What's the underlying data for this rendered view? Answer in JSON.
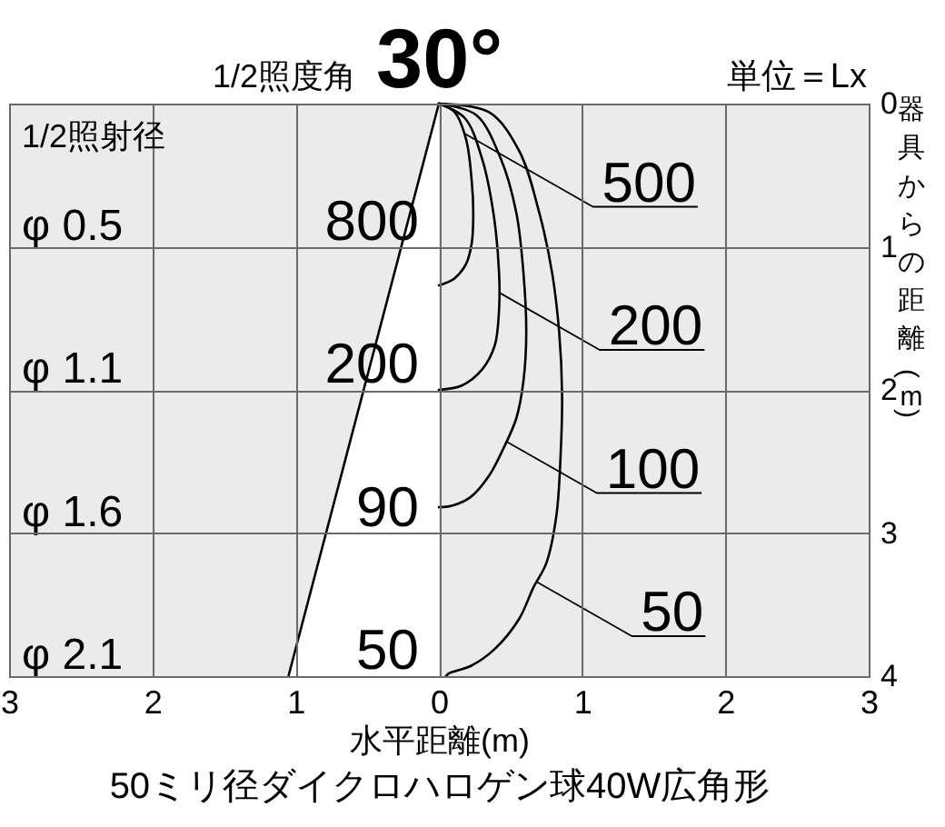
{
  "chart_data": {
    "type": "line",
    "title": "30°",
    "subtitle": "1/2照度角",
    "xlabel": "水平距離(m)",
    "ylabel": "器具からの距離(m)",
    "annotations": [
      "1/2照射径",
      "単位＝Lx",
      "50ミリ径ダイクロハロゲン球40W広角形",
      "800",
      {
        "text": "200",
        "x": 0,
        "y": 2
      },
      "90",
      "50",
      "φ 0.5",
      "φ 1.1",
      "φ 1.6",
      "φ 2.1",
      {
        "text": "500",
        "x": 0.18,
        "y": 0.21
      },
      {
        "text": "200",
        "x": 0.42,
        "y": 1.32
      },
      {
        "text": "100",
        "x": 0.47,
        "y": 2.36
      },
      {
        "text": "50",
        "x": 0.68,
        "y": 3.34
      }
    ],
    "xlim": [
      -3,
      3
    ],
    "xticks": [
      {
        "value": -3,
        "label": "3"
      },
      {
        "value": -2,
        "label": "2"
      },
      {
        "value": -1,
        "label": "1"
      },
      0,
      1,
      2,
      3
    ],
    "ylim": [
      4,
      0
    ],
    "yticks": [
      0,
      1,
      2,
      3,
      4
    ],
    "grid": true,
    "series": [
      {
        "type": "area",
        "color": "#ffffff",
        "x": [
          -1.05,
          0
        ],
        "values": [
          4,
          0
        ]
      },
      {
        "color": "#000000",
        "x": [
          0,
          0.11,
          0.19,
          0.23,
          0.24,
          0.23,
          0.19,
          0.11,
          0.03,
          0
        ],
        "values": [
          0,
          0.06,
          0.25,
          0.55,
          0.76,
          0.97,
          1.12,
          1.22,
          1.26,
          1.27
        ]
      },
      {
        "color": "#000000",
        "x": [
          0,
          0.18,
          0.3,
          0.38,
          0.42,
          0.42,
          0.39,
          0.3,
          0.16,
          0
        ],
        "values": [
          0,
          0.1,
          0.38,
          0.76,
          1.18,
          1.44,
          1.69,
          1.86,
          1.97,
          2.0
        ]
      },
      {
        "color": "#000000",
        "x": [
          0,
          0.26,
          0.43,
          0.54,
          0.59,
          0.61,
          0.59,
          0.54,
          0.45,
          0.35,
          0.22,
          0.09,
          0
        ],
        "values": [
          0,
          0.08,
          0.38,
          0.76,
          1.18,
          1.6,
          1.94,
          2.2,
          2.41,
          2.6,
          2.75,
          2.81,
          2.82
        ]
      },
      {
        "color": "#000000",
        "x": [
          0,
          0.35,
          0.56,
          0.7,
          0.79,
          0.84,
          0.86,
          0.85,
          0.82,
          0.75,
          0.66,
          0.56,
          0.39,
          0.22,
          0.07,
          0.05
        ],
        "values": [
          0,
          0.06,
          0.33,
          0.76,
          1.18,
          1.6,
          2.03,
          2.45,
          2.88,
          3.21,
          3.38,
          3.6,
          3.81,
          3.93,
          3.98,
          4.0
        ]
      }
    ]
  }
}
